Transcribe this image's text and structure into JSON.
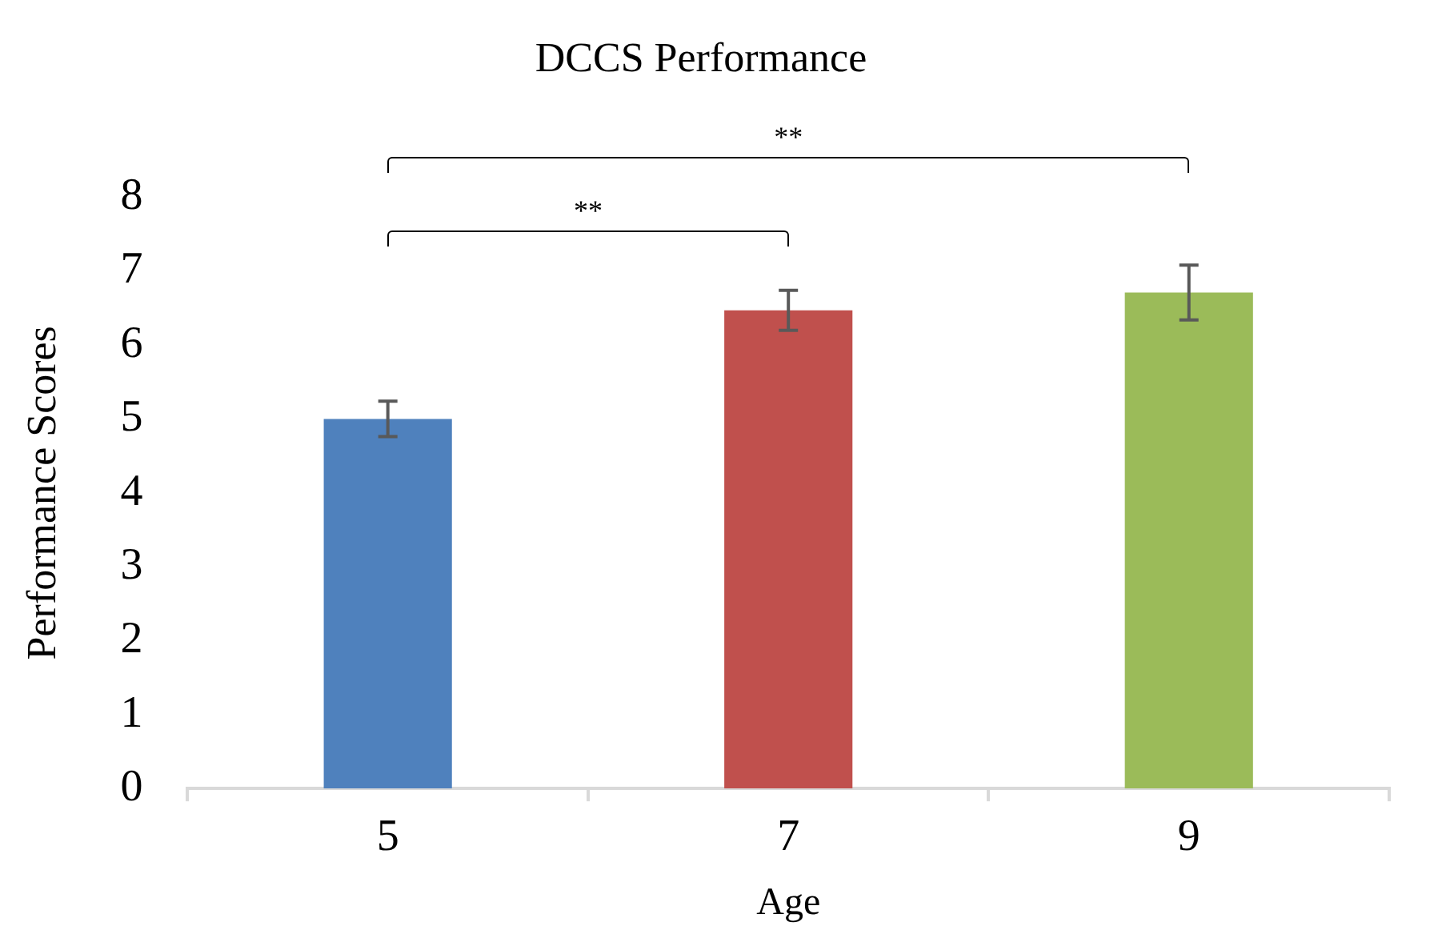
{
  "chart_data": {
    "type": "bar",
    "title": "DCCS Performance",
    "xlabel": "Age",
    "ylabel": "Performance Scores",
    "categories": [
      "5",
      "7",
      "9"
    ],
    "values": [
      5.0,
      6.47,
      6.71
    ],
    "colors": [
      "#4f81bd",
      "#c0504d",
      "#9bbb59"
    ],
    "errors": [
      0.24,
      0.27,
      0.37
    ],
    "ylim": [
      0,
      8
    ],
    "yticks": [
      0,
      1,
      2,
      3,
      4,
      5,
      6,
      7,
      8
    ],
    "grid": false,
    "legend": false,
    "annotations": [
      "**",
      "**"
    ]
  }
}
